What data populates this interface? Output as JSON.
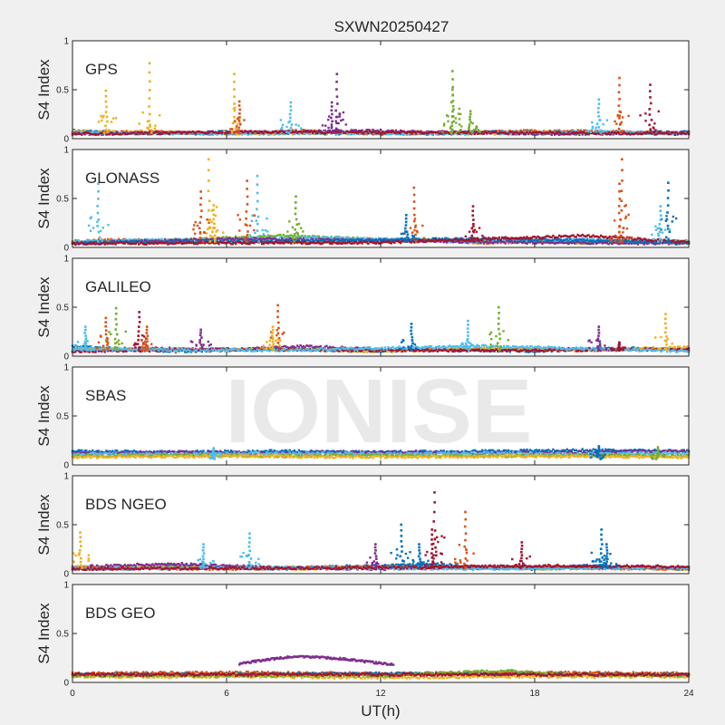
{
  "figure": {
    "title": "SXWN20250427",
    "xlabel": "UT(h)",
    "watermark": "IONISE",
    "background_color": "#f0f0f0",
    "axes_color": "#ffffff"
  },
  "chart_data": {
    "type": "scatter",
    "xlim": [
      0,
      24
    ],
    "xticks": [
      0,
      6,
      12,
      18,
      24
    ],
    "ylim": [
      0,
      1
    ],
    "yticks": [
      0,
      0.5,
      1
    ],
    "ylabel": "S4 Index",
    "series_colors": [
      "#0072BD",
      "#D95319",
      "#EDB120",
      "#7E2F8E",
      "#77AC30",
      "#4DBEEE",
      "#A2142F"
    ],
    "panels": [
      {
        "label": "GPS",
        "baseline": [
          {
            "color": 0,
            "x": [
              0,
              2,
              4,
              6,
              8,
              10,
              12,
              14,
              16,
              18,
              20,
              22,
              24
            ],
            "y": [
              0.08,
              0.06,
              0.05,
              0.07,
              0.06,
              0.05,
              0.06,
              0.05,
              0.07,
              0.06,
              0.05,
              0.06,
              0.07
            ]
          },
          {
            "color": 1,
            "x": [
              0,
              3,
              6,
              9,
              12,
              15,
              18,
              21,
              24
            ],
            "y": [
              0.06,
              0.07,
              0.05,
              0.08,
              0.05,
              0.06,
              0.08,
              0.07,
              0.06
            ]
          },
          {
            "color": 2,
            "x": [
              0,
              4,
              8,
              12,
              16,
              20,
              24
            ],
            "y": [
              0.07,
              0.06,
              0.05,
              0.07,
              0.05,
              0.06,
              0.05
            ]
          },
          {
            "color": 3,
            "x": [
              0,
              6,
              12,
              18,
              24
            ],
            "y": [
              0.05,
              0.06,
              0.08,
              0.05,
              0.06
            ]
          },
          {
            "color": 5,
            "x": [
              0,
              5,
              10,
              15,
              20,
              24
            ],
            "y": [
              0.06,
              0.05,
              0.06,
              0.05,
              0.07,
              0.05
            ]
          },
          {
            "color": 6,
            "x": [
              0,
              8,
              16,
              24
            ],
            "y": [
              0.05,
              0.07,
              0.06,
              0.05
            ]
          }
        ],
        "spikes": [
          {
            "x": 1.3,
            "y": 0.49,
            "color": 2
          },
          {
            "x": 3.0,
            "y": 0.77,
            "color": 2
          },
          {
            "x": 6.3,
            "y": 0.66,
            "color": 2
          },
          {
            "x": 6.5,
            "y": 0.38,
            "color": 1
          },
          {
            "x": 8.5,
            "y": 0.37,
            "color": 5
          },
          {
            "x": 10.3,
            "y": 0.66,
            "color": 3
          },
          {
            "x": 10.1,
            "y": 0.37,
            "color": 3
          },
          {
            "x": 14.8,
            "y": 0.69,
            "color": 4
          },
          {
            "x": 14.8,
            "y": 0.5,
            "color": 4
          },
          {
            "x": 15.5,
            "y": 0.28,
            "color": 4
          },
          {
            "x": 20.5,
            "y": 0.4,
            "color": 5
          },
          {
            "x": 21.3,
            "y": 0.62,
            "color": 1
          },
          {
            "x": 22.5,
            "y": 0.55,
            "color": 6
          }
        ]
      },
      {
        "label": "GLONASS",
        "baseline": [
          {
            "color": 1,
            "x": [
              0,
              2,
              4,
              6,
              8,
              10,
              12,
              14,
              16,
              18,
              20,
              22,
              24
            ],
            "y": [
              0.06,
              0.08,
              0.05,
              0.07,
              0.06,
              0.05,
              0.06,
              0.07,
              0.05,
              0.06,
              0.05,
              0.07,
              0.06
            ]
          },
          {
            "color": 4,
            "x": [
              0,
              4,
              8,
              12,
              16,
              20,
              24
            ],
            "y": [
              0.05,
              0.07,
              0.12,
              0.08,
              0.06,
              0.05,
              0.06
            ]
          },
          {
            "color": 5,
            "x": [
              0,
              5,
              10,
              15,
              20,
              24
            ],
            "y": [
              0.06,
              0.08,
              0.1,
              0.06,
              0.08,
              0.05
            ]
          },
          {
            "color": 3,
            "x": [
              0,
              6,
              12,
              18,
              24
            ],
            "y": [
              0.04,
              0.09,
              0.07,
              0.05,
              0.04
            ]
          },
          {
            "color": 0,
            "x": [
              0,
              8,
              16,
              24
            ],
            "y": [
              0.05,
              0.06,
              0.09,
              0.05
            ]
          },
          {
            "color": 6,
            "x": [
              0,
              12,
              20,
              24
            ],
            "y": [
              0.04,
              0.05,
              0.12,
              0.05
            ]
          }
        ],
        "spikes": [
          {
            "x": 1.0,
            "y": 0.65,
            "color": 5
          },
          {
            "x": 5.3,
            "y": 0.9,
            "color": 2
          },
          {
            "x": 5.0,
            "y": 0.57,
            "color": 1
          },
          {
            "x": 5.5,
            "y": 0.43,
            "color": 2
          },
          {
            "x": 6.8,
            "y": 0.68,
            "color": 1
          },
          {
            "x": 7.2,
            "y": 0.73,
            "color": 5
          },
          {
            "x": 8.7,
            "y": 0.52,
            "color": 4
          },
          {
            "x": 13.3,
            "y": 0.61,
            "color": 1
          },
          {
            "x": 13.0,
            "y": 0.33,
            "color": 0
          },
          {
            "x": 15.6,
            "y": 0.42,
            "color": 6
          },
          {
            "x": 21.4,
            "y": 0.9,
            "color": 1
          },
          {
            "x": 21.3,
            "y": 0.65,
            "color": 1
          },
          {
            "x": 23.2,
            "y": 0.66,
            "color": 0
          },
          {
            "x": 22.9,
            "y": 0.42,
            "color": 5
          }
        ]
      },
      {
        "label": "GALILEO",
        "baseline": [
          {
            "color": 0,
            "x": [
              0,
              2,
              4,
              6,
              8,
              10,
              12,
              14,
              16,
              18,
              20,
              22,
              24
            ],
            "y": [
              0.1,
              0.07,
              0.05,
              0.06,
              0.08,
              0.06,
              0.05,
              0.07,
              0.06,
              0.05,
              0.07,
              0.08,
              0.06
            ]
          },
          {
            "color": 3,
            "x": [
              0,
              3,
              6,
              9,
              12,
              15,
              18,
              21,
              24
            ],
            "y": [
              0.06,
              0.08,
              0.06,
              0.1,
              0.07,
              0.06,
              0.08,
              0.07,
              0.06
            ]
          },
          {
            "color": 2,
            "x": [
              0,
              4,
              8,
              12,
              16,
              20,
              24
            ],
            "y": [
              0.08,
              0.06,
              0.07,
              0.05,
              0.08,
              0.06,
              0.09
            ]
          },
          {
            "color": 6,
            "x": [
              0,
              6,
              12,
              18,
              24
            ],
            "y": [
              0.05,
              0.07,
              0.06,
              0.06,
              0.07
            ]
          },
          {
            "color": 5,
            "x": [
              0,
              8,
              16,
              24
            ],
            "y": [
              0.07,
              0.06,
              0.1,
              0.05
            ]
          }
        ],
        "spikes": [
          {
            "x": 0.5,
            "y": 0.3,
            "color": 5
          },
          {
            "x": 1.3,
            "y": 0.39,
            "color": 1
          },
          {
            "x": 1.7,
            "y": 0.49,
            "color": 4
          },
          {
            "x": 2.6,
            "y": 0.45,
            "color": 6
          },
          {
            "x": 2.9,
            "y": 0.3,
            "color": 1
          },
          {
            "x": 5.0,
            "y": 0.27,
            "color": 3
          },
          {
            "x": 8.0,
            "y": 0.52,
            "color": 1
          },
          {
            "x": 7.8,
            "y": 0.3,
            "color": 2
          },
          {
            "x": 13.2,
            "y": 0.33,
            "color": 0
          },
          {
            "x": 15.4,
            "y": 0.36,
            "color": 5
          },
          {
            "x": 16.6,
            "y": 0.5,
            "color": 4
          },
          {
            "x": 20.5,
            "y": 0.3,
            "color": 3
          },
          {
            "x": 23.1,
            "y": 0.43,
            "color": 2
          },
          {
            "x": 21.3,
            "y": 0.14,
            "color": 6
          }
        ]
      },
      {
        "label": "SBAS",
        "baseline": [
          {
            "color": 0,
            "x": [
              0,
              4,
              8,
              12,
              16,
              20,
              24
            ],
            "y": [
              0.14,
              0.13,
              0.14,
              0.13,
              0.14,
              0.15,
              0.14
            ]
          },
          {
            "color": 3,
            "x": [
              0,
              4,
              8,
              12,
              16,
              20,
              24
            ],
            "y": [
              0.12,
              0.13,
              0.12,
              0.13,
              0.12,
              0.13,
              0.14
            ]
          },
          {
            "color": 5,
            "x": [
              0,
              4,
              8,
              12,
              16,
              20,
              24
            ],
            "y": [
              0.11,
              0.11,
              0.12,
              0.11,
              0.12,
              0.11,
              0.12
            ]
          },
          {
            "color": 4,
            "x": [
              0,
              4,
              8,
              12,
              16,
              20,
              24
            ],
            "y": [
              0.09,
              0.1,
              0.09,
              0.1,
              0.09,
              0.1,
              0.09
            ]
          },
          {
            "color": 2,
            "x": [
              0,
              6,
              12,
              18,
              24
            ],
            "y": [
              0.08,
              0.09,
              0.08,
              0.09,
              0.08
            ]
          }
        ],
        "spikes": [
          {
            "x": 5.5,
            "y": 0.17,
            "color": 5
          },
          {
            "x": 20.5,
            "y": 0.19,
            "color": 0
          },
          {
            "x": 22.8,
            "y": 0.18,
            "color": 4
          }
        ]
      },
      {
        "label": "BDS NGEO",
        "baseline": [
          {
            "color": 0,
            "x": [
              0,
              2,
              4,
              6,
              8,
              10,
              12,
              14,
              16,
              18,
              20,
              22,
              24
            ],
            "y": [
              0.06,
              0.05,
              0.08,
              0.06,
              0.05,
              0.07,
              0.08,
              0.1,
              0.06,
              0.05,
              0.08,
              0.06,
              0.05
            ]
          },
          {
            "color": 2,
            "x": [
              0,
              3,
              6,
              9,
              12,
              15,
              18,
              21,
              24
            ],
            "y": [
              0.05,
              0.07,
              0.06,
              0.05,
              0.07,
              0.06,
              0.05,
              0.06,
              0.05
            ]
          },
          {
            "color": 3,
            "x": [
              0,
              4,
              8,
              12,
              16,
              20,
              24
            ],
            "y": [
              0.07,
              0.1,
              0.06,
              0.05,
              0.06,
              0.07,
              0.06
            ]
          },
          {
            "color": 1,
            "x": [
              0,
              6,
              12,
              18,
              24
            ],
            "y": [
              0.06,
              0.05,
              0.07,
              0.06,
              0.05
            ]
          },
          {
            "color": 5,
            "x": [
              0,
              8,
              16,
              24
            ],
            "y": [
              0.05,
              0.06,
              0.05,
              0.06
            ]
          },
          {
            "color": 6,
            "x": [
              0,
              12,
              18,
              24
            ],
            "y": [
              0.05,
              0.06,
              0.08,
              0.07
            ]
          }
        ],
        "spikes": [
          {
            "x": 0.3,
            "y": 0.42,
            "color": 2
          },
          {
            "x": 5.1,
            "y": 0.3,
            "color": 5
          },
          {
            "x": 6.9,
            "y": 0.41,
            "color": 5
          },
          {
            "x": 11.8,
            "y": 0.3,
            "color": 3
          },
          {
            "x": 12.8,
            "y": 0.5,
            "color": 0
          },
          {
            "x": 13.5,
            "y": 0.3,
            "color": 0
          },
          {
            "x": 14.1,
            "y": 0.83,
            "color": 6
          },
          {
            "x": 15.3,
            "y": 0.63,
            "color": 1
          },
          {
            "x": 14.0,
            "y": 0.45,
            "color": 6
          },
          {
            "x": 17.5,
            "y": 0.32,
            "color": 6
          },
          {
            "x": 20.6,
            "y": 0.45,
            "color": 0
          },
          {
            "x": 20.8,
            "y": 0.3,
            "color": 0
          }
        ]
      },
      {
        "label": "BDS GEO",
        "baseline": [
          {
            "color": 1,
            "x": [
              0,
              6,
              12,
              18,
              24
            ],
            "y": [
              0.09,
              0.1,
              0.09,
              0.1,
              0.09
            ]
          },
          {
            "color": 0,
            "x": [
              0,
              6,
              12,
              18,
              24
            ],
            "y": [
              0.08,
              0.08,
              0.09,
              0.08,
              0.08
            ]
          },
          {
            "color": 2,
            "x": [
              0,
              6,
              12,
              18,
              24
            ],
            "y": [
              0.06,
              0.06,
              0.05,
              0.06,
              0.06
            ]
          },
          {
            "color": 4,
            "x": [
              0,
              12,
              17,
              19,
              24
            ],
            "y": [
              0.07,
              0.07,
              0.12,
              0.08,
              0.07
            ]
          },
          {
            "color": 6,
            "x": [
              0,
              12,
              24
            ],
            "y": [
              0.08,
              0.08,
              0.08
            ]
          }
        ],
        "arcs": [
          {
            "color": 3,
            "x": [
              6.5,
              7.5,
              8.5,
              9.5,
              10.5,
              11.5,
              12.5
            ],
            "y": [
              0.19,
              0.23,
              0.26,
              0.26,
              0.24,
              0.21,
              0.18
            ]
          }
        ],
        "spikes": []
      }
    ]
  }
}
